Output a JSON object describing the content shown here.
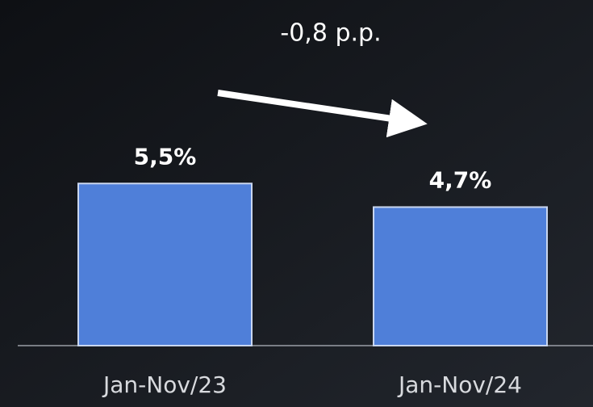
{
  "chart_data": {
    "type": "bar",
    "annotation": "-0,8 p.p.",
    "categories": [
      "Jan-Nov/23",
      "Jan-Nov/24"
    ],
    "values": [
      5.5,
      4.7
    ],
    "value_labels": [
      "5,5%",
      "4,7%"
    ],
    "color": "#4f7fd9"
  }
}
